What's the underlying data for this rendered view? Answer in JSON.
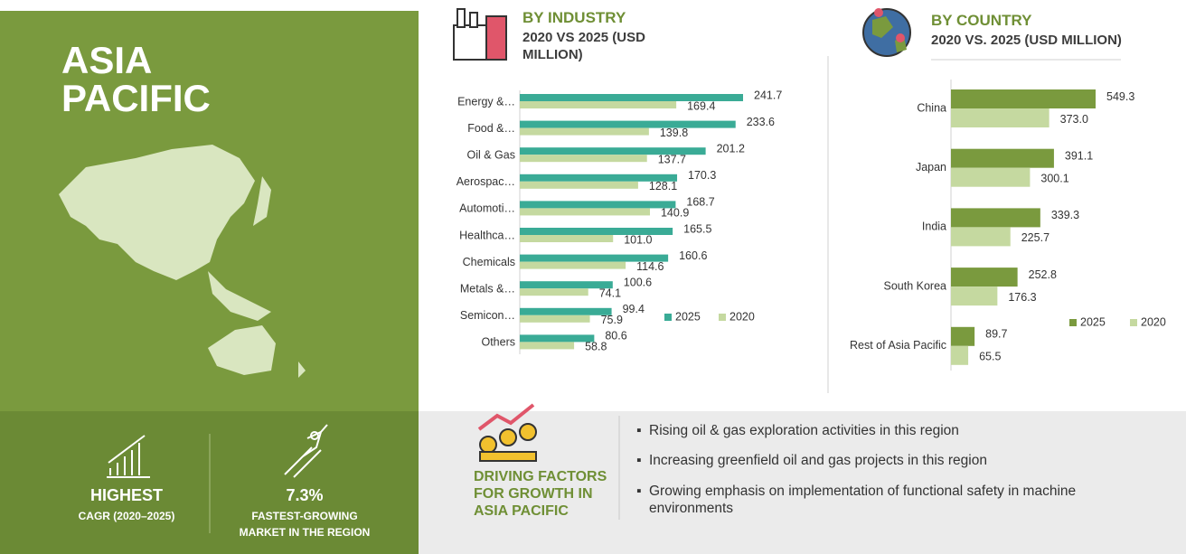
{
  "region": {
    "title": "ASIA PACIFIC"
  },
  "stats": [
    {
      "value": "HIGHEST",
      "label": "CAGR (2020–2025)"
    },
    {
      "value": "7.3%",
      "label": "FASTEST-GROWING MARKET IN THE REGION"
    }
  ],
  "chart_data": [
    {
      "type": "bar",
      "orientation": "horizontal",
      "title": "BY INDUSTRY",
      "subtitle": "2020 VS 2025 (USD MILLION)",
      "categories": [
        "Energy &…",
        "Food &…",
        "Oil & Gas",
        "Aerospac…",
        "Automoti…",
        "Healthca…",
        "Chemicals",
        "Metals &…",
        "Semicon…",
        "Others"
      ],
      "series": [
        {
          "name": "2025",
          "color": "#3aab96",
          "values": [
            241.7,
            233.6,
            201.2,
            170.3,
            168.7,
            165.5,
            160.6,
            100.6,
            99.4,
            80.6
          ],
          "value_labels": [
            "241.7",
            "233.6",
            "201.2",
            "170.3",
            "168.7",
            "165.5",
            "160.6",
            "100.6",
            "99.4",
            "80.6"
          ]
        },
        {
          "name": "2020",
          "color": "#c5d9a0",
          "values": [
            169.4,
            139.8,
            137.7,
            128.1,
            140.9,
            101.0,
            114.6,
            74.1,
            75.9,
            58.8
          ],
          "value_labels": [
            "169.4",
            "139.8",
            "137.7",
            "128.1",
            "140.9",
            "101.0",
            "114.6",
            "74.1",
            "75.9",
            "58.8"
          ]
        }
      ],
      "legend": "lower-right"
    },
    {
      "type": "bar",
      "orientation": "horizontal",
      "title": "BY COUNTRY",
      "subtitle": "2020 VS. 2025 (USD MILLION)",
      "categories": [
        "China",
        "Japan",
        "India",
        "South Korea",
        "Rest of Asia Pacific"
      ],
      "series": [
        {
          "name": "2025",
          "color": "#7a9a3e",
          "values": [
            549.3,
            391.1,
            339.3,
            252.8,
            89.7
          ],
          "value_labels": [
            "549.3",
            "391.1",
            "339.3",
            "252.8",
            "89.7"
          ]
        },
        {
          "name": "2020",
          "color": "#c5d9a0",
          "values": [
            373.0,
            300.1,
            225.7,
            176.3,
            65.5
          ],
          "value_labels": [
            "373.0",
            "300.1",
            "225.7",
            "176.3",
            "65.5"
          ]
        }
      ],
      "legend": "lower-right"
    }
  ],
  "drivers": {
    "title": "DRIVING FACTORS FOR GROWTH IN ASIA PACIFIC",
    "items": [
      "Rising oil & gas exploration activities in this region",
      "Increasing greenfield oil and gas projects in this region",
      "Growing emphasis on implementation of functional safety in machine environments"
    ]
  }
}
